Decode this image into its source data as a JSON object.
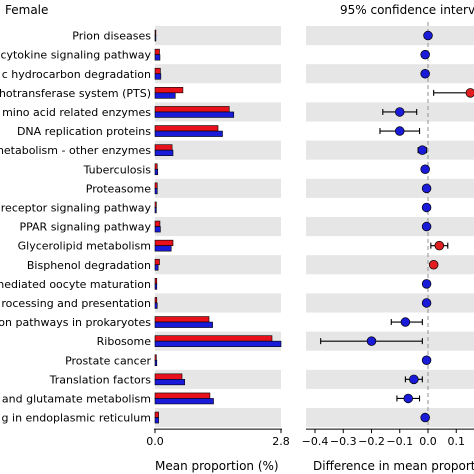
{
  "chart_data": [
    {
      "type": "bar",
      "title": "",
      "group_label": "Female",
      "xlabel": "Mean proportion (%)",
      "ylabel": "",
      "xlim": [
        0,
        2.8
      ],
      "xticks": [
        "0.0",
        "2.8"
      ],
      "orientation": "horizontal",
      "bar_colors": [
        "#e8101a",
        "#1a1ad9"
      ],
      "row_band_color": "#e6e6e6",
      "categories": [
        "Prion diseases",
        "cytokine signaling pathway",
        "c hydrocarbon degradation",
        "hotransferase system (PTS)",
        "mino acid related enzymes",
        "DNA replication proteins",
        "metabolism - other enzymes",
        "Tuberculosis",
        "Proteasome",
        "receptor signaling pathway",
        "PPAR signaling pathway",
        "Glycerolipid metabolism",
        "Bisphenol degradation",
        "nediated oocyte maturation",
        "rocessing and presentation",
        "on pathways in prokaryotes",
        "Ribosome",
        "Prostate cancer",
        "Translation factors",
        "and glutamate metabolism",
        "g in endoplasmic reticulum"
      ],
      "series": [
        {
          "values": [
            0.02,
            0.1,
            0.12,
            0.62,
            1.65,
            1.4,
            0.38,
            0.05,
            0.05,
            0.03,
            0.11,
            0.4,
            0.1,
            0.04,
            0.04,
            1.2,
            2.6,
            0.03,
            0.6,
            1.22,
            0.08
          ]
        },
        {
          "values": [
            0.02,
            0.11,
            0.13,
            0.45,
            1.75,
            1.5,
            0.4,
            0.06,
            0.05,
            0.03,
            0.12,
            0.36,
            0.07,
            0.04,
            0.05,
            1.28,
            2.8,
            0.04,
            0.66,
            1.3,
            0.08
          ]
        }
      ]
    },
    {
      "type": "scatter",
      "title": "95% confidence interva",
      "xlabel": "Difference in mean proportio",
      "ylabel": "",
      "xlim": [
        -0.4,
        0.16
      ],
      "xticks": [
        "−0.4",
        "−0.3",
        "−0.2",
        "−0.1",
        "0.0",
        "0.1"
      ],
      "xtick_values": [
        -0.4,
        -0.3,
        -0.2,
        -0.1,
        0.0,
        0.1
      ],
      "positive_color": "#e02020",
      "negative_color": "#1a1ad9",
      "points": [
        {
          "diff": 0.0,
          "lo": -0.002,
          "hi": 0.002
        },
        {
          "diff": -0.01,
          "lo": -0.013,
          "hi": -0.007
        },
        {
          "diff": -0.01,
          "lo": -0.013,
          "hi": -0.007
        },
        {
          "diff": 0.15,
          "lo": 0.02,
          "hi": 0.29
        },
        {
          "diff": -0.1,
          "lo": -0.16,
          "hi": -0.04
        },
        {
          "diff": -0.1,
          "lo": -0.17,
          "hi": -0.03
        },
        {
          "diff": -0.02,
          "lo": -0.035,
          "hi": -0.005
        },
        {
          "diff": -0.01,
          "lo": -0.012,
          "hi": -0.008
        },
        {
          "diff": -0.005,
          "lo": -0.007,
          "hi": -0.003
        },
        {
          "diff": -0.005,
          "lo": -0.007,
          "hi": -0.003
        },
        {
          "diff": -0.005,
          "lo": -0.008,
          "hi": -0.002
        },
        {
          "diff": 0.04,
          "lo": 0.01,
          "hi": 0.07
        },
        {
          "diff": 0.02,
          "lo": 0.012,
          "hi": 0.028
        },
        {
          "diff": -0.005,
          "lo": -0.007,
          "hi": -0.003
        },
        {
          "diff": -0.005,
          "lo": -0.008,
          "hi": -0.002
        },
        {
          "diff": -0.08,
          "lo": -0.13,
          "hi": -0.02
        },
        {
          "diff": -0.2,
          "lo": -0.38,
          "hi": -0.02
        },
        {
          "diff": -0.005,
          "lo": -0.007,
          "hi": -0.003
        },
        {
          "diff": -0.05,
          "lo": -0.08,
          "hi": -0.02
        },
        {
          "diff": -0.07,
          "lo": -0.11,
          "hi": -0.03
        },
        {
          "diff": -0.01,
          "lo": -0.013,
          "hi": -0.007
        }
      ]
    }
  ]
}
